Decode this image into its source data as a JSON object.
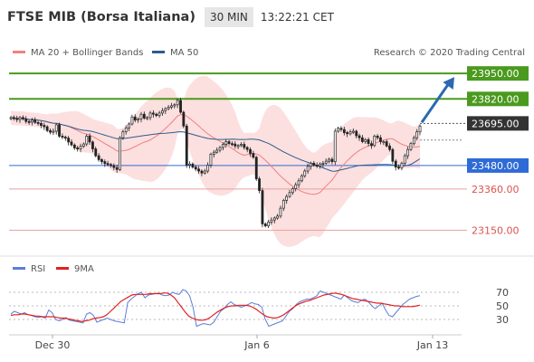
{
  "header": {
    "title": "FTSE MIB (Borsa Italiana)",
    "timeframe": "30 MIN",
    "time": "13:22:21 CET"
  },
  "legend": {
    "ma20": "MA 20 + Bollinger Bands",
    "ma50": "MA 50",
    "rsi": "RSI",
    "ma9": "9MA"
  },
  "source": "Research © 2020 Trading Central",
  "colors": {
    "green": "#4a9a1e",
    "blue": "#2f6bd6",
    "red": "#d9534f",
    "ma20": "#f08080",
    "ma50": "#2e5c8a",
    "band": "#f9c4c4",
    "arrow": "#2c69b0",
    "rsi": "#5b7fd6",
    "ma9": "#e02020",
    "price_box": "#333333"
  },
  "chart_data": [
    {
      "type": "candlestick",
      "x_labels": [
        "Dec 30",
        "Jan 6",
        "Jan 13"
      ],
      "ylim": [
        23050,
        24020
      ],
      "levels": [
        {
          "value": 23950,
          "label": "23950.00",
          "style": "resistance"
        },
        {
          "value": 23820,
          "label": "23820.00",
          "style": "resistance"
        },
        {
          "value": 23695,
          "label": "23695.00",
          "style": "last-price"
        },
        {
          "value": 23480,
          "label": "23480.00",
          "style": "pivot"
        },
        {
          "value": 23360,
          "label": "23360.00",
          "style": "support"
        },
        {
          "value": 23150,
          "label": "23150.00",
          "style": "support"
        }
      ],
      "arrow": {
        "from": 23700,
        "to": 23950
      },
      "close": [
        23725,
        23720,
        23715,
        23725,
        23718,
        23705,
        23702,
        23712,
        23700,
        23695,
        23685,
        23678,
        23658,
        23650,
        23655,
        23688,
        23630,
        23625,
        23620,
        23600,
        23585,
        23570,
        23565,
        23578,
        23590,
        23630,
        23600,
        23565,
        23530,
        23510,
        23500,
        23490,
        23485,
        23480,
        23470,
        23460,
        23622,
        23652,
        23672,
        23692,
        23728,
        23712,
        23718,
        23742,
        23722,
        23725,
        23748,
        23742,
        23735,
        23748,
        23760,
        23770,
        23778,
        23785,
        23790,
        23812,
        23752,
        23682,
        23482,
        23488,
        23472,
        23462,
        23452,
        23442,
        23452,
        23482,
        23538,
        23548,
        23558,
        23572,
        23588,
        23602,
        23592,
        23590,
        23580,
        23582,
        23588,
        23572,
        23562,
        23542,
        23522,
        23412,
        23352,
        23182,
        23172,
        23192,
        23202,
        23212,
        23222,
        23262,
        23302,
        23322,
        23342,
        23362,
        23382,
        23402,
        23428,
        23452,
        23476,
        23492,
        23482,
        23478,
        23488,
        23492,
        23502,
        23512,
        23500,
        23655,
        23670,
        23664,
        23648,
        23642,
        23652,
        23655,
        23632,
        23622,
        23602,
        23612,
        23592,
        23582,
        23630,
        23622,
        23602,
        23602,
        23580,
        23562,
        23502,
        23472,
        23467,
        23492,
        23530,
        23562,
        23592,
        23622,
        23652,
        23682
      ]
    },
    {
      "type": "line",
      "ylim": [
        10,
        90
      ],
      "yticks": [
        30,
        50,
        70
      ],
      "series": [
        {
          "name": "RSI",
          "values": [
            38,
            42,
            40,
            38,
            40,
            37,
            36,
            34,
            33,
            34,
            32,
            44,
            40,
            30,
            28,
            30,
            33,
            29,
            28,
            27,
            26,
            25,
            38,
            40,
            36,
            26,
            28,
            30,
            32,
            30,
            28,
            27,
            26,
            25,
            55,
            60,
            64,
            68,
            70,
            62,
            66,
            67,
            68,
            69,
            66,
            65,
            66,
            70,
            68,
            67,
            74,
            72,
            65,
            48,
            20,
            22,
            24,
            23,
            22,
            26,
            34,
            42,
            46,
            52,
            56,
            52,
            50,
            48,
            50,
            52,
            55,
            53,
            52,
            48,
            30,
            20,
            22,
            24,
            26,
            28,
            35,
            42,
            46,
            52,
            56,
            58,
            60,
            60,
            62,
            65,
            72,
            70,
            68,
            66,
            64,
            62,
            60,
            66,
            62,
            58,
            56,
            55,
            58,
            60,
            56,
            50,
            46,
            50,
            54,
            44,
            36,
            34,
            40,
            46,
            52,
            56,
            60,
            62,
            64,
            65
          ]
        },
        {
          "name": "9MA",
          "values": [
            36,
            37,
            37,
            38,
            38,
            37,
            36,
            35,
            35,
            34,
            34,
            34,
            34,
            33,
            32,
            32,
            31,
            30,
            29,
            28,
            27,
            28,
            29,
            31,
            32,
            33,
            34,
            37,
            42,
            47,
            52,
            57,
            60,
            63,
            66,
            67,
            67,
            67,
            67,
            68,
            68,
            68,
            68,
            69,
            69,
            66,
            62,
            55,
            48,
            41,
            35,
            32,
            30,
            29,
            29,
            30,
            33,
            37,
            41,
            44,
            47,
            49,
            50,
            50,
            51,
            51,
            51,
            50,
            48,
            45,
            41,
            37,
            34,
            33,
            32,
            33,
            35,
            38,
            42,
            46,
            50,
            53,
            55,
            57,
            58,
            60,
            62,
            64,
            66,
            67,
            68,
            69,
            68,
            67,
            65,
            63,
            61,
            60,
            59,
            58,
            57,
            56,
            55,
            54,
            54,
            53,
            52,
            51,
            50,
            50,
            49,
            49,
            49,
            49,
            50,
            51
          ]
        }
      ]
    }
  ]
}
